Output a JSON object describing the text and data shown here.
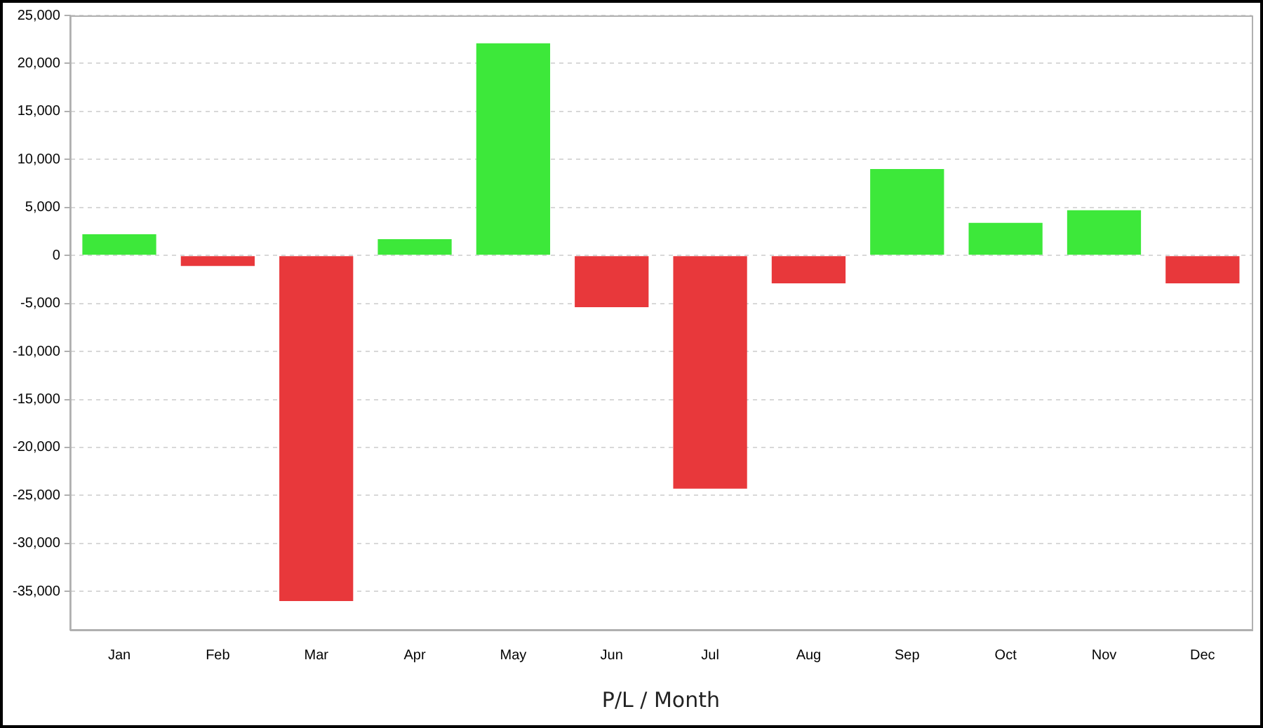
{
  "chart_data": {
    "type": "bar",
    "xlabel": "P/L / Month",
    "categories": [
      "Jan",
      "Feb",
      "Mar",
      "Apr",
      "May",
      "Jun",
      "Jul",
      "Aug",
      "Sep",
      "Oct",
      "Nov",
      "Dec"
    ],
    "values": [
      2200,
      -1100,
      -36000,
      1700,
      22100,
      -5400,
      -24300,
      -2900,
      9000,
      3400,
      4700,
      -2900
    ],
    "colors": [
      "#3de83a",
      "#e8383b",
      "#e8383b",
      "#3de83a",
      "#3de83a",
      "#e8383b",
      "#e8383b",
      "#e8383b",
      "#3de83a",
      "#3de83a",
      "#3de83a",
      "#e8383b"
    ],
    "ylim": [
      -39000,
      25000
    ],
    "yticks": [
      {
        "value": -35000,
        "label": "-35,000"
      },
      {
        "value": -30000,
        "label": "-30,000"
      },
      {
        "value": -25000,
        "label": "-25,000"
      },
      {
        "value": -20000,
        "label": "-20,000"
      },
      {
        "value": -15000,
        "label": "-15,000"
      },
      {
        "value": -10000,
        "label": "-10,000"
      },
      {
        "value": -5000,
        "label": "-5,000"
      },
      0,
      {
        "value": 5000,
        "label": "5,000"
      },
      {
        "value": 10000,
        "label": "10,000"
      },
      {
        "value": 15000,
        "label": "15,000"
      },
      {
        "value": 20000,
        "label": "20,000"
      },
      {
        "value": 25000,
        "label": "25,000"
      }
    ],
    "grid": "y",
    "legend": false
  }
}
